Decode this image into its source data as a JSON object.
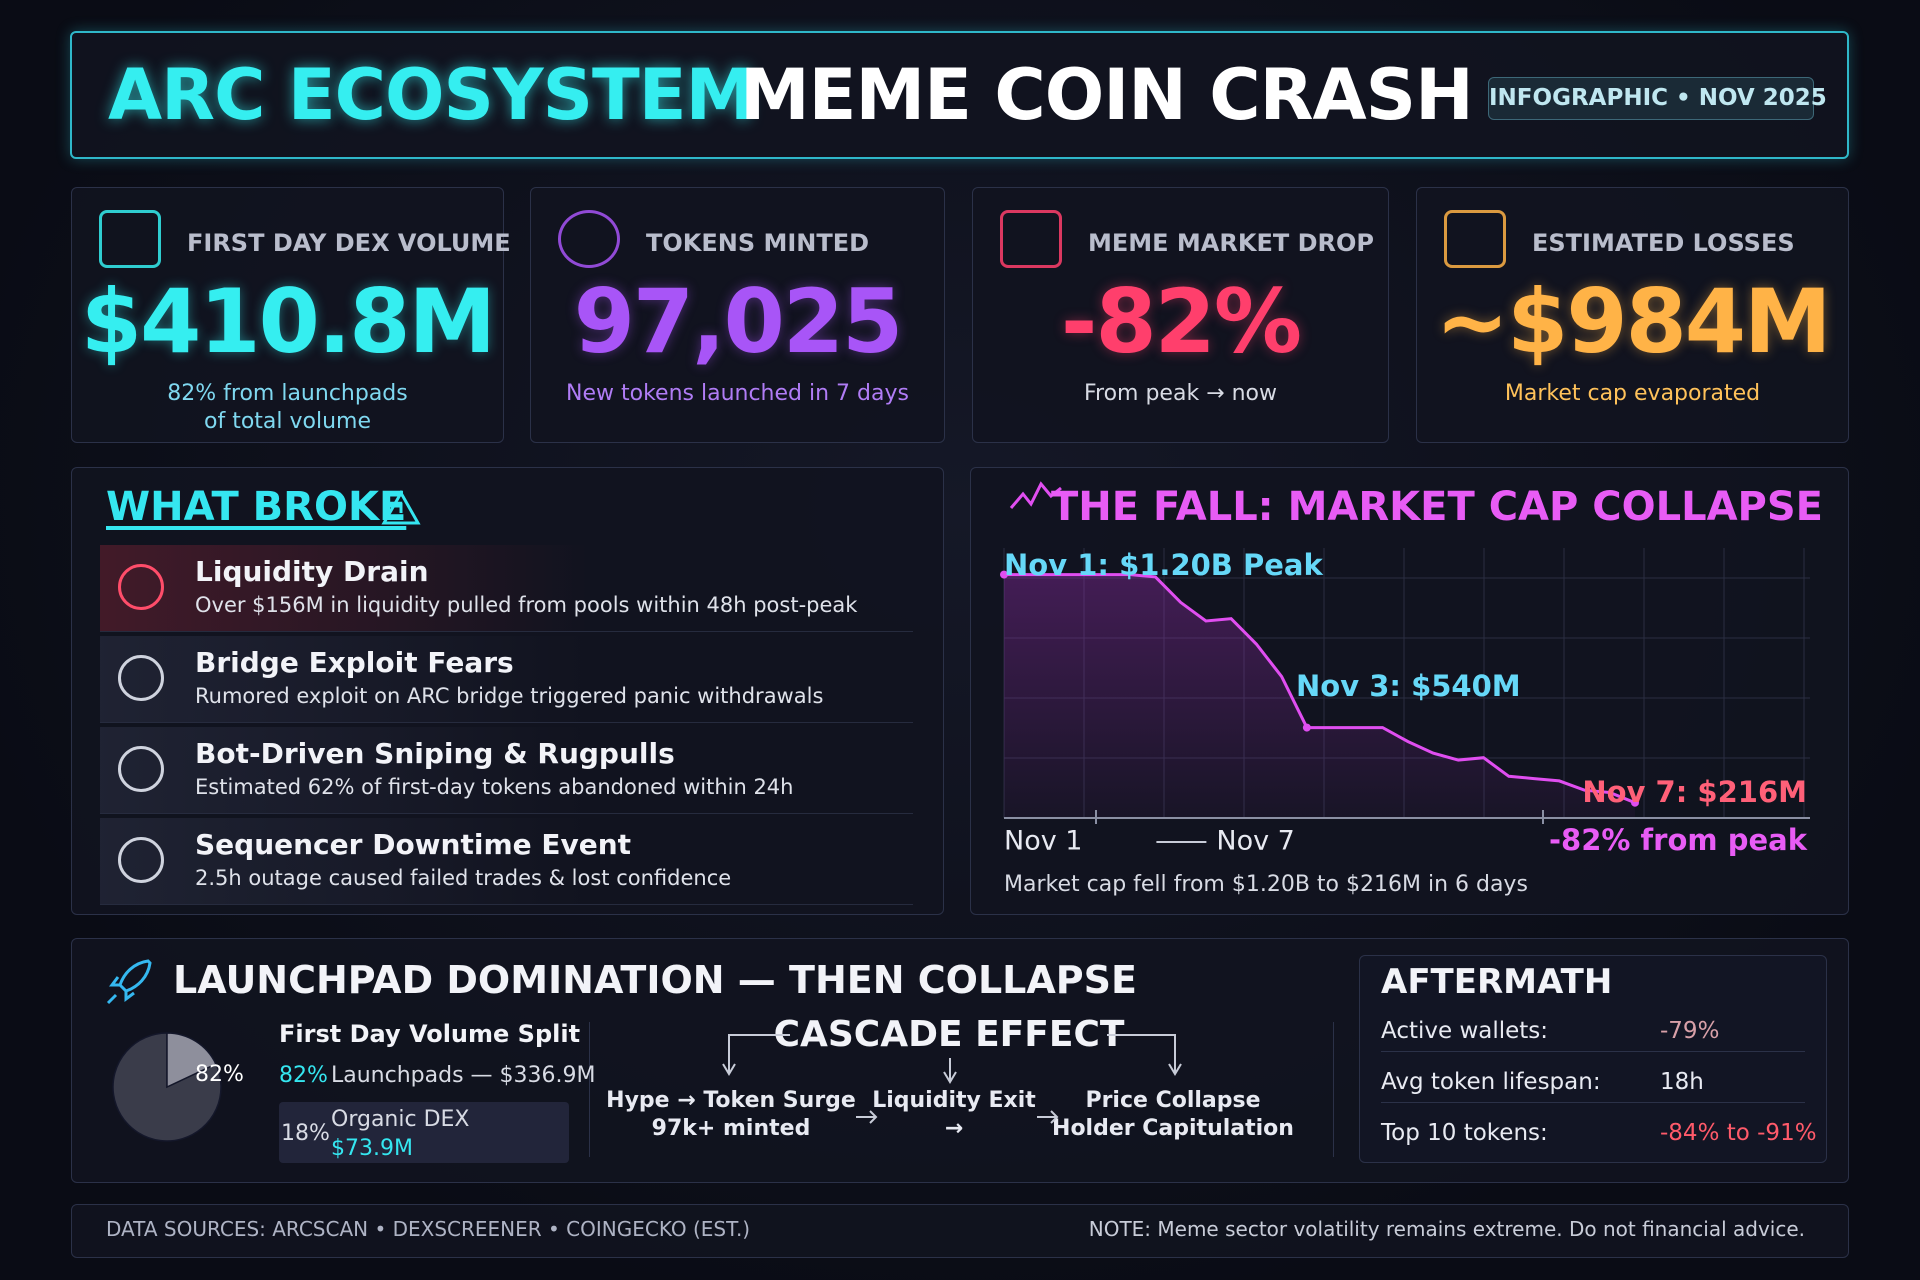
{
  "header": {
    "title_accent": "ARC ECOSYSTEM",
    "title_main": "MEME COIN CRASH",
    "badge": "INFOGRAPHIC • NOV 2025"
  },
  "stats": [
    {
      "label": "FIRST DAY DEX VOLUME",
      "value": "$410.8M",
      "note": [
        "82% from launchpads",
        "of total volume"
      ]
    },
    {
      "label": "TOKENS MINTED",
      "value": "97,025",
      "note": [
        "New tokens launched in 7 days"
      ]
    },
    {
      "label": "MEME MARKET DROP",
      "value": "-82%",
      "note": [
        "From peak → now"
      ]
    },
    {
      "label": "ESTIMATED LOSSES",
      "value": "~$984M",
      "note": [
        "Market cap evaporated"
      ]
    }
  ],
  "what_broke": {
    "title": "WHAT BROKE",
    "items": [
      {
        "title": "Liquidity Drain",
        "desc": "Over $156M in liquidity pulled from pools within 48h post-peak"
      },
      {
        "title": "Bridge Exploit Fears",
        "desc": "Rumored exploit on ARC bridge triggered panic withdrawals"
      },
      {
        "title": "Bot-Driven Sniping & Rugpulls",
        "desc": "Estimated 62% of first-day tokens abandoned within 24h"
      },
      {
        "title": "Sequencer Downtime Event",
        "desc": "2.5h outage caused failed trades & lost confidence"
      }
    ]
  },
  "chart_data": [
    {
      "type": "line",
      "title": "THE FALL: MARKET CAP COLLAPSE",
      "categories": [
        "Nov 1",
        null,
        null,
        null,
        null,
        null,
        null,
        null,
        null,
        null,
        "Nov 7",
        null,
        null,
        null,
        null,
        null,
        null,
        null,
        null,
        null,
        null,
        null,
        null,
        null,
        null,
        null
      ],
      "values": [
        1200,
        1200,
        1200,
        1200,
        1200,
        1200,
        1190,
        1080,
        1000,
        1010,
        900,
        760,
        540,
        540,
        540,
        540,
        480,
        430,
        400,
        410,
        330,
        320,
        310,
        270,
        260,
        216
      ],
      "color": "#e04ef0",
      "ylim": [
        150,
        1250
      ],
      "annotations": [
        "Nov 1: $1.20B Peak",
        "Nov 3: $540M",
        "Nov 7: $216M",
        "-82% from peak"
      ],
      "caption": "Market cap fell from $1.20B to $216M in 6 days"
    },
    {
      "type": "pie",
      "title": "First Day Volume Split",
      "categories": [
        "Launchpads — $336.9M",
        "Organic DEX"
      ],
      "detail": "$73.9M",
      "values": [
        82,
        18
      ],
      "value_labels": [
        "82%",
        "18%"
      ],
      "colors": [
        "#3a3c4a",
        "#8e8f9c"
      ]
    }
  ],
  "launchpad": {
    "title": "LAUNCHPAD DOMINATION — THEN COLLAPSE",
    "cascade": {
      "title": "CASCADE EFFECT",
      "steps": [
        [
          "Hype → Token Surge",
          "97k+ minted"
        ],
        [
          "Liquidity Exit",
          "→"
        ],
        [
          "Price Collapse",
          "Holder Capitulation"
        ]
      ]
    }
  },
  "aftermath": {
    "title": "AFTERMATH",
    "rows": [
      [
        "Active wallets:",
        "-79%"
      ],
      [
        "Avg token lifespan:",
        "18h"
      ],
      [
        "Top 10 tokens:",
        "-84% to -91%"
      ]
    ]
  },
  "footer": {
    "sources": "DATA SOURCES: ARCSCAN • DEXSCREENER • COINGECKO (EST.)",
    "note": "NOTE: Meme sector volatility remains extreme. Do not financial advice."
  }
}
